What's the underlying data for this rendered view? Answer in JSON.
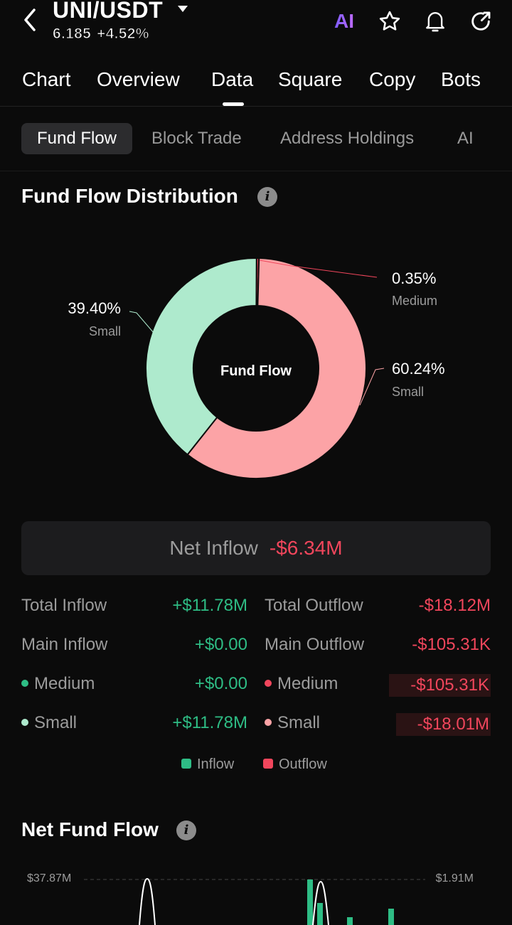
{
  "header": {
    "pair": "UNI/USDT",
    "price": "6.185",
    "change": "+4.52%",
    "ai_label": "AI"
  },
  "main_tabs": [
    {
      "label": "Chart"
    },
    {
      "label": "Overview"
    },
    {
      "label": "Data"
    },
    {
      "label": "Square"
    },
    {
      "label": "Copy"
    },
    {
      "label": "Bots"
    }
  ],
  "active_main_tab": "Data",
  "sub_tabs": [
    {
      "label": "Fund Flow"
    },
    {
      "label": "Block Trade"
    },
    {
      "label": "Address Holdings"
    },
    {
      "label": "AI"
    }
  ],
  "distribution": {
    "title": "Fund Flow Distribution",
    "center_label": "Fund Flow",
    "segments": [
      {
        "label": "Medium",
        "pct": "0.35%",
        "value": 0.35,
        "color": "#f1465c"
      },
      {
        "label": "Small",
        "pct": "60.24%",
        "value": 60.24,
        "color": "#fca3a6"
      },
      {
        "label": "Small",
        "pct": "39.40%",
        "value": 39.4,
        "color": "#aeeacd"
      }
    ]
  },
  "net_inflow": {
    "label": "Net Inflow",
    "value": "-$6.34M"
  },
  "summary": {
    "rows": [
      {
        "in_label": "Total Inflow",
        "in_value": "+$11.78M",
        "out_label": "Total Outflow",
        "out_value": "-$18.12M"
      },
      {
        "in_label": "Main Inflow",
        "in_value": "+$0.00",
        "out_label": "Main Outflow",
        "out_value": "-$105.31K"
      },
      {
        "in_label": "Medium",
        "in_value": "+$0.00",
        "out_label": "Medium",
        "out_value": "-$105.31K"
      },
      {
        "in_label": "Small",
        "in_value": "+$11.78M",
        "out_label": "Small",
        "out_value": "-$18.01M"
      }
    ]
  },
  "legend": {
    "inflow": "Inflow",
    "outflow": "Outflow"
  },
  "net_fund_flow": {
    "title": "Net Fund Flow",
    "left_axis_top": "$37.87M",
    "right_axis_top": "$1.91M"
  },
  "colors": {
    "inflow": "#2ebd85",
    "outflow": "#f1465c",
    "small_in": "#aeeacd",
    "small_out": "#fca3a6"
  }
}
